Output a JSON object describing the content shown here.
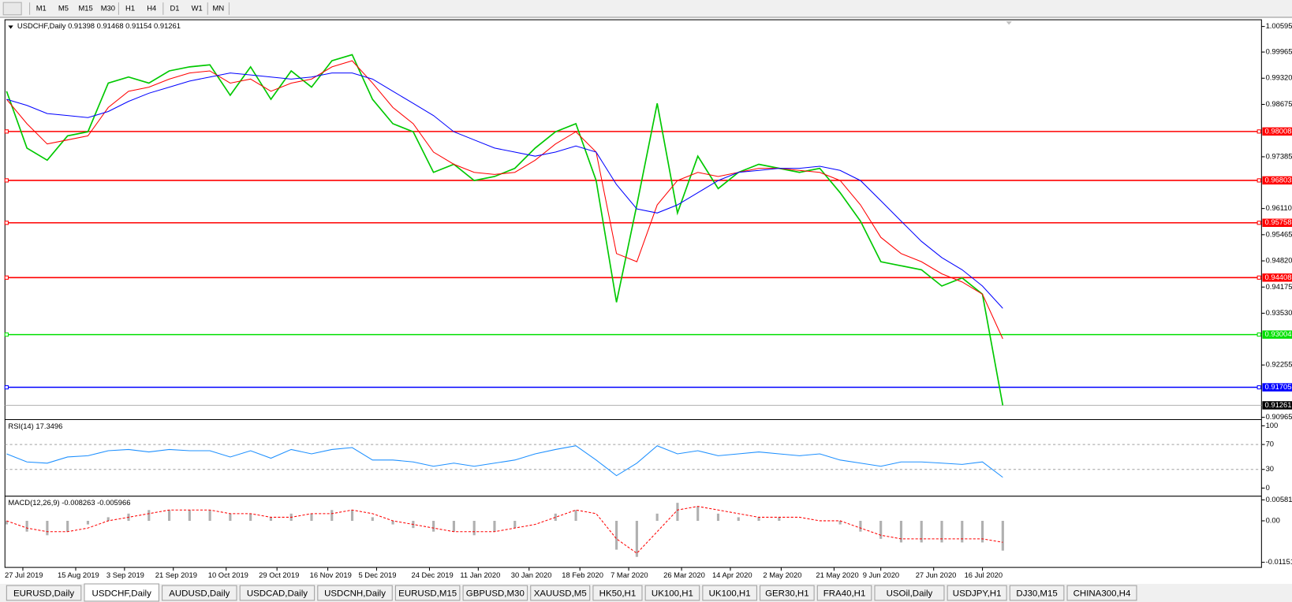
{
  "toolbar": {
    "timeframes": [
      "M1",
      "M5",
      "M15",
      "M30",
      "H1",
      "H4",
      "D1",
      "W1",
      "MN"
    ]
  },
  "tabs": [
    "EURUSD,Daily",
    "USDCHF,Daily",
    "AUDUSD,Daily",
    "USDCAD,Daily",
    "USDCNH,Daily",
    "EURUSD,M15",
    "GBPUSD,M30",
    "XAUUSD,M5",
    "HK50,H1",
    "UK100,H1",
    "UK100,H1",
    "GER30,H1",
    "FRA40,H1",
    "USOil,Daily",
    "USDJPY,H1",
    "DJ30,M15",
    "CHINA300,H4"
  ],
  "active_tab": 1,
  "chart_data": [
    {
      "type": "line",
      "title": "USDCHF,Daily  0.91398 0.91468 0.91154 0.91261",
      "ylim": [
        0.9094,
        1.0074
      ],
      "yticks": [
        1.00595,
        0.99965,
        {
          "value": 0.9932,
          "label": "0.99320"
        },
        0.98675,
        0.97385,
        {
          "value": 0.9611,
          "label": "0.96110"
        },
        0.95465,
        {
          "value": 0.9482,
          "label": "0.94820"
        },
        0.94175,
        {
          "value": 0.9353,
          "label": "0.93530"
        },
        0.92255,
        0.90965
      ],
      "levels": [
        {
          "value": 0.98008,
          "color": "#ff0000"
        },
        {
          "value": 0.96803,
          "color": "#ff0000"
        },
        {
          "value": 0.95758,
          "color": "#ff0000"
        },
        {
          "value": 0.94408,
          "color": "#ff0000"
        },
        {
          "value": 0.93004,
          "color": "#00e000"
        },
        {
          "value": 0.91705,
          "color": "#0000ff"
        }
      ],
      "last_price": 0.91261,
      "series": [
        {
          "color": "#00c800",
          "values": [
            0.99,
            0.976,
            0.973,
            0.979,
            0.98,
            0.992,
            0.9935,
            0.992,
            0.995,
            0.996,
            0.9965,
            0.989,
            0.996,
            0.988,
            0.995,
            0.991,
            0.9975,
            0.999,
            0.988,
            0.982,
            0.98,
            0.97,
            0.972,
            0.968,
            0.969,
            0.971,
            0.976,
            0.98,
            0.982,
            0.968,
            0.938,
            0.962,
            0.987,
            0.96,
            0.974,
            0.966,
            0.97,
            0.972,
            0.971,
            0.97,
            0.971,
            0.965,
            0.958,
            0.948,
            0.947,
            0.946,
            0.942,
            0.944,
            0.94,
            0.9126
          ]
        },
        {
          "color": "#ff0000",
          "values": [
            0.988,
            0.982,
            0.977,
            0.978,
            0.979,
            0.986,
            0.99,
            0.991,
            0.993,
            0.9945,
            0.995,
            0.992,
            0.993,
            0.99,
            0.992,
            0.993,
            0.996,
            0.9975,
            0.992,
            0.986,
            0.982,
            0.975,
            0.972,
            0.97,
            0.9695,
            0.97,
            0.973,
            0.977,
            0.98,
            0.975,
            0.95,
            0.948,
            0.962,
            0.968,
            0.97,
            0.969,
            0.97,
            0.971,
            0.971,
            0.9705,
            0.97,
            0.968,
            0.962,
            0.954,
            0.95,
            0.948,
            0.945,
            0.943,
            0.94,
            0.929
          ]
        },
        {
          "color": "#0000ff",
          "values": [
            0.988,
            0.9865,
            0.9845,
            0.984,
            0.9835,
            0.985,
            0.9875,
            0.9895,
            0.991,
            0.9925,
            0.9935,
            0.9945,
            0.994,
            0.9935,
            0.993,
            0.9935,
            0.9945,
            0.9945,
            0.993,
            0.99,
            0.987,
            0.984,
            0.98,
            0.978,
            0.976,
            0.975,
            0.974,
            0.975,
            0.9765,
            0.975,
            0.967,
            0.961,
            0.96,
            0.962,
            0.965,
            0.968,
            0.97,
            0.9705,
            0.971,
            0.971,
            0.9715,
            0.9705,
            0.968,
            0.963,
            0.958,
            0.953,
            0.949,
            0.946,
            0.942,
            0.9365
          ]
        }
      ]
    },
    {
      "type": "line",
      "title": "RSI(14) 17.3496",
      "ylim": [
        -11,
        108
      ],
      "yticks": [
        100,
        70,
        30,
        0
      ],
      "series": [
        {
          "color": "#1e90ff",
          "values": [
            55,
            42,
            40,
            50,
            52,
            60,
            62,
            58,
            62,
            60,
            60,
            50,
            60,
            48,
            62,
            55,
            62,
            65,
            45,
            45,
            42,
            35,
            40,
            35,
            40,
            45,
            55,
            62,
            68,
            45,
            20,
            40,
            68,
            55,
            60,
            52,
            55,
            58,
            55,
            52,
            55,
            45,
            40,
            35,
            42,
            42,
            40,
            38,
            42,
            17.35
          ]
        }
      ]
    },
    {
      "type": "bar",
      "title": "MACD(12,26,9) -0.008263 -0.005966",
      "ylim": [
        -0.0127,
        0.0065
      ],
      "yticks": [
        0.005818,
        {
          "value": 0,
          "label": "0.00"
        },
        -0.01151
      ],
      "xlim": [
        0,
        49
      ],
      "xticks": [
        {
          "value": 0.8,
          "label": "27 Jul 2019"
        },
        {
          "value": 3.4,
          "label": "15 Aug 2019"
        },
        {
          "value": 5.8,
          "label": "3 Sep 2019"
        },
        {
          "value": 8.2,
          "label": "21 Sep 2019"
        },
        {
          "value": 10.8,
          "label": "10 Oct 2019"
        },
        {
          "value": 13.3,
          "label": "29 Oct 2019"
        },
        {
          "value": 15.8,
          "label": "16 Nov 2019"
        },
        {
          "value": 18.2,
          "label": "5 Dec 2019"
        },
        {
          "value": 20.8,
          "label": "24 Dec 2019"
        },
        {
          "value": 23.2,
          "label": "11 Jan 2020"
        },
        {
          "value": 25.7,
          "label": "30 Jan 2020"
        },
        {
          "value": 28.2,
          "label": "18 Feb 2020"
        },
        {
          "value": 30.6,
          "label": "7 Mar 2020"
        },
        {
          "value": 33.2,
          "label": "26 Mar 2020"
        },
        {
          "value": 35.6,
          "label": "14 Apr 2020"
        },
        {
          "value": 38.1,
          "label": "2 May 2020"
        },
        {
          "value": 40.7,
          "label": "21 May 2020"
        },
        {
          "value": 43.0,
          "label": "9 Jun 2020"
        },
        {
          "value": 45.6,
          "label": "27 Jun 2020"
        },
        {
          "value": 48.0,
          "label": "16 Jul 2020"
        }
      ],
      "series": [
        {
          "type": "bar",
          "color": "#b0b0b0",
          "values": [
            -0.001,
            -0.003,
            -0.004,
            -0.003,
            -0.001,
            0.001,
            0.002,
            0.003,
            0.003,
            0.003,
            0.003,
            0.002,
            0.002,
            0.001,
            0.002,
            0.002,
            0.003,
            0.003,
            0.001,
            -0.001,
            -0.002,
            -0.003,
            -0.003,
            -0.004,
            -0.003,
            -0.002,
            0.0,
            0.002,
            0.003,
            0.0,
            -0.008,
            -0.01,
            0.002,
            0.005,
            0.004,
            0.002,
            0.001,
            0.001,
            0.001,
            0.0,
            0.0,
            -0.001,
            -0.003,
            -0.005,
            -0.006,
            -0.006,
            -0.006,
            -0.006,
            -0.006,
            -0.008263
          ]
        },
        {
          "type": "line",
          "color": "#ff0000",
          "dashed": true,
          "values": [
            0.0,
            -0.002,
            -0.003,
            -0.003,
            -0.002,
            0.0,
            0.001,
            0.002,
            0.003,
            0.003,
            0.003,
            0.002,
            0.002,
            0.001,
            0.001,
            0.002,
            0.002,
            0.003,
            0.002,
            0.0,
            -0.001,
            -0.002,
            -0.003,
            -0.003,
            -0.003,
            -0.002,
            -0.001,
            0.001,
            0.003,
            0.002,
            -0.005,
            -0.009,
            -0.003,
            0.003,
            0.004,
            0.003,
            0.002,
            0.001,
            0.001,
            0.001,
            0.0,
            0.0,
            -0.002,
            -0.004,
            -0.005,
            -0.005,
            -0.005,
            -0.005,
            -0.005,
            -0.005966
          ]
        }
      ]
    }
  ]
}
